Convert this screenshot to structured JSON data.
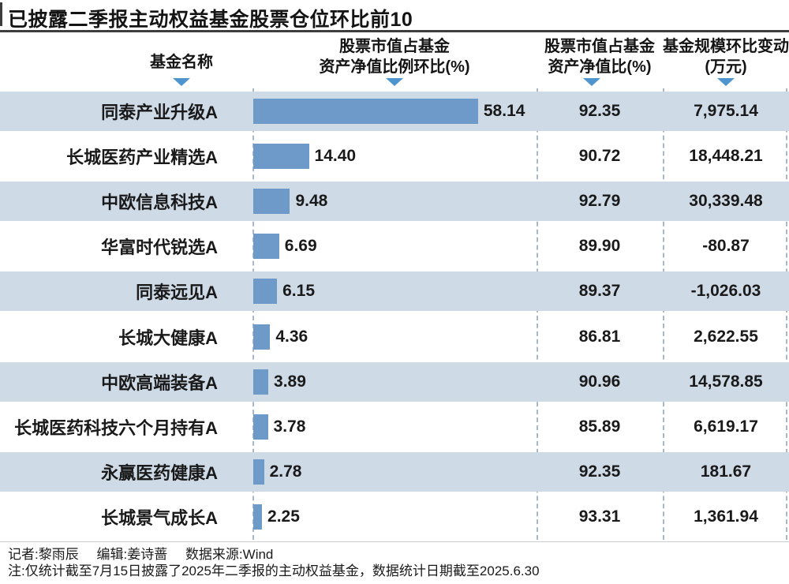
{
  "title": "已披露二季报主动权益基金股票仓位环比前10",
  "columns": [
    {
      "line1": "基金名称",
      "line2": ""
    },
    {
      "line1": "股票市值占基金",
      "line2": "资产净值比例环比(%)"
    },
    {
      "line1": "股票市值占基金",
      "line2": "资产净值比(%)"
    },
    {
      "line1": "基金规模环比变动",
      "line2": "(万元)"
    }
  ],
  "rows": [
    {
      "name": "同泰产业升级A",
      "change": 58.14,
      "change_label": "58.14",
      "ratio_label": "92.35",
      "scale_label": "7,975.14"
    },
    {
      "name": "长城医药产业精选A",
      "change": 14.4,
      "change_label": "14.40",
      "ratio_label": "90.72",
      "scale_label": "18,448.21"
    },
    {
      "name": "中欧信息科技A",
      "change": 9.48,
      "change_label": "9.48",
      "ratio_label": "92.79",
      "scale_label": "30,339.48"
    },
    {
      "name": "华富时代锐选A",
      "change": 6.69,
      "change_label": "6.69",
      "ratio_label": "89.90",
      "scale_label": "-80.87"
    },
    {
      "name": "同泰远见A",
      "change": 6.15,
      "change_label": "6.15",
      "ratio_label": "89.37",
      "scale_label": "-1,026.03"
    },
    {
      "name": "长城大健康A",
      "change": 4.36,
      "change_label": "4.36",
      "ratio_label": "86.81",
      "scale_label": "2,622.55"
    },
    {
      "name": "中欧高端装备A",
      "change": 3.89,
      "change_label": "3.89",
      "ratio_label": "90.96",
      "scale_label": "14,578.85"
    },
    {
      "name": "长城医药科技六个月持有A",
      "change": 3.78,
      "change_label": "3.78",
      "ratio_label": "85.89",
      "scale_label": "6,619.17"
    },
    {
      "name": "永赢医药健康A",
      "change": 2.78,
      "change_label": "2.78",
      "ratio_label": "92.35",
      "scale_label": "181.67"
    },
    {
      "name": "长城景气成长A",
      "change": 2.25,
      "change_label": "2.25",
      "ratio_label": "93.31",
      "scale_label": "1,361.94"
    }
  ],
  "footer": {
    "credits": [
      "记者:黎雨辰",
      "编辑:姜诗蔷",
      "数据来源:Wind"
    ],
    "note": "注:仅统计截至7月15日披露了2025年二季报的主动权益基金，数据统计日期截至2025.6.30"
  },
  "colors": {
    "bar": "#6d9ac8",
    "row_band": "#cfdae7",
    "triangle": "#4e94ce",
    "dashed_line": "#aab7c7",
    "rule_dark": "#3d3d3d"
  },
  "chart_data": {
    "type": "bar",
    "orientation": "horizontal",
    "title": "已披露二季报主动权益基金股票仓位环比前10",
    "categories": [
      "同泰产业升级A",
      "长城医药产业精选A",
      "中欧信息科技A",
      "华富时代锐选A",
      "同泰远见A",
      "长城大健康A",
      "中欧高端装备A",
      "长城医药科技六个月持有A",
      "永赢医药健康A",
      "长城景气成长A"
    ],
    "series": [
      {
        "name": "股票市值占基金资产净值比例环比(%)",
        "values": [
          58.14,
          14.4,
          9.48,
          6.69,
          6.15,
          4.36,
          3.89,
          3.78,
          2.78,
          2.25
        ],
        "rendered_as": "bars_with_labels"
      },
      {
        "name": "股票市值占基金资产净值比(%)",
        "values": [
          92.35,
          90.72,
          92.79,
          89.9,
          89.37,
          86.81,
          90.96,
          85.89,
          92.35,
          93.31
        ],
        "rendered_as": "text_column"
      },
      {
        "name": "基金规模环比变动(万元)",
        "values": [
          7975.14,
          18448.21,
          30339.48,
          -80.87,
          -1026.03,
          2622.55,
          14578.85,
          6619.17,
          181.67,
          1361.94
        ],
        "rendered_as": "text_column"
      }
    ],
    "xlim": [
      0,
      73
    ],
    "grid": false,
    "legend": "none",
    "notes": [
      "记者:黎雨辰 编辑:姜诗蔷 数据来源:Wind",
      "注:仅统计截至7月15日披露了2025年二季报的主动权益基金，数据统计日期截至2025.6.30"
    ]
  }
}
